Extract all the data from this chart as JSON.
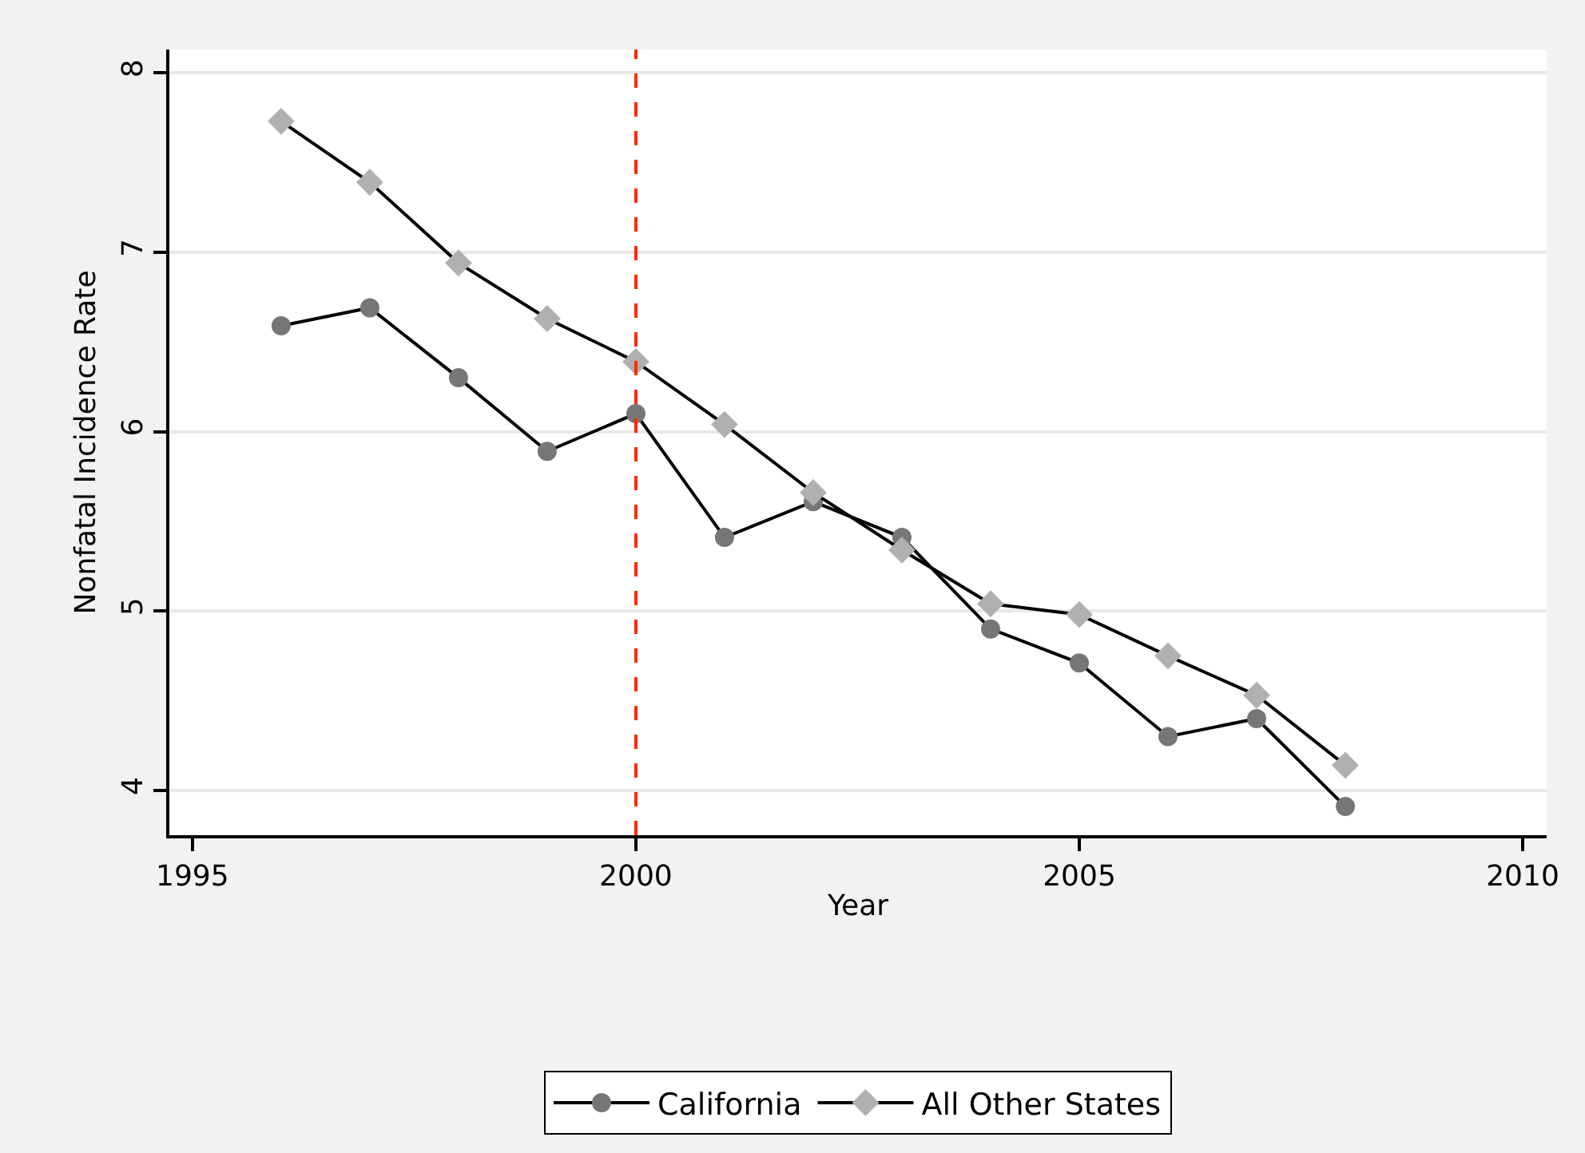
{
  "chart_data": {
    "type": "line",
    "xlabel": "Year",
    "ylabel": "Nonfatal Incidence Rate",
    "x": [
      1996,
      1997,
      1998,
      1999,
      2000,
      2001,
      2002,
      2003,
      2004,
      2005,
      2006,
      2007,
      2008
    ],
    "series": [
      {
        "name": "California",
        "color": "#767676",
        "marker": "circle",
        "values": [
          6.59,
          6.69,
          6.3,
          5.89,
          6.1,
          5.41,
          5.61,
          5.41,
          4.9,
          4.71,
          4.3,
          4.4,
          3.91
        ]
      },
      {
        "name": "All Other States",
        "color": "#b0b0b0",
        "marker": "diamond",
        "values": [
          7.73,
          7.39,
          6.94,
          6.63,
          6.39,
          6.04,
          5.66,
          5.34,
          5.04,
          4.98,
          4.75,
          4.53,
          4.14
        ]
      }
    ],
    "xlim": [
      1994.74,
      2010.27
    ],
    "xticks": [
      1995,
      2000,
      2005,
      2010
    ],
    "ylim": [
      3.75,
      8.13
    ],
    "yticks": [
      4,
      5,
      6,
      7,
      8
    ],
    "grid": "y",
    "legend": "bottom",
    "line_style": "solid",
    "ref_lines": [
      {
        "axis": "x",
        "value": 2000,
        "color": "#ff2a00",
        "line_style": "dashed"
      }
    ]
  }
}
